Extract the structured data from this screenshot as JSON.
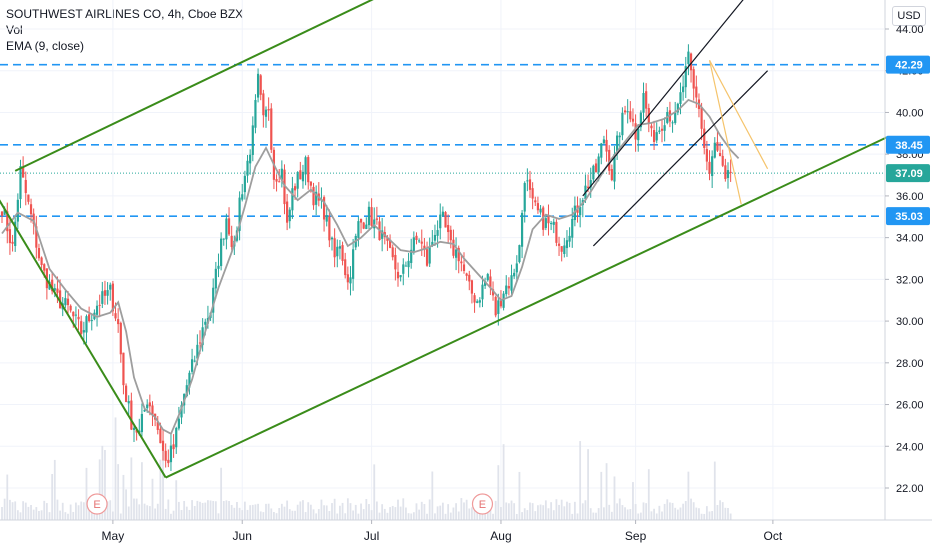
{
  "legend": {
    "symbol_line": "SOUTHWEST AIRLINES CO, 4h, Cboe BZX",
    "vol_label": "Vol",
    "ema_label": "EMA (9, close)"
  },
  "currency_button": "USD",
  "colors": {
    "up": "#26a69a",
    "down": "#ef5350",
    "ema": "#9e9e9e",
    "trend": "#3a8c1a",
    "level": "#2196f3",
    "price_line": "#26a69a",
    "volume": "#e0e3eb",
    "channel": "#131722",
    "fan": "#f5c46c"
  },
  "chart_data": {
    "type": "candlestick",
    "title": "SOUTHWEST AIRLINES CO, 4h, Cboe BZX",
    "ylim": [
      20.5,
      45
    ],
    "y_ticks": [
      "22.00",
      "24.00",
      "26.00",
      "28.00",
      "30.00",
      "32.00",
      "34.00",
      "36.00",
      "38.00",
      "40.00",
      "42.00",
      "44.00"
    ],
    "x_ticks": [
      "May",
      "Jun",
      "Jul",
      "Aug",
      "Sep",
      "Oct"
    ],
    "x_tick_index": [
      42,
      91,
      140,
      189,
      240,
      292
    ],
    "price_labels": [
      {
        "value": 42.29,
        "label": "42.29",
        "kind": "level"
      },
      {
        "value": 38.45,
        "label": "38.45",
        "kind": "level"
      },
      {
        "value": 37.09,
        "label": "37.09",
        "kind": "last"
      },
      {
        "value": 35.03,
        "label": "35.03",
        "kind": "level"
      }
    ],
    "horizontal_levels": [
      42.29,
      38.45,
      35.03
    ],
    "last_price": 37.09,
    "trend_lines": [
      {
        "from": [
          -2,
          36.0
        ],
        "to": [
          62,
          22.5
        ],
        "style": "upper-start"
      },
      {
        "from": [
          5,
          37.2
        ],
        "to": [
          150,
          46.0
        ]
      },
      {
        "from": [
          62,
          22.5
        ],
        "to": [
          335,
          38.8
        ]
      }
    ],
    "channel_lines": [
      {
        "from": [
          220,
          36.0
        ],
        "to": [
          282,
          45.6
        ]
      },
      {
        "from": [
          224,
          33.6
        ],
        "to": [
          290,
          42.0
        ]
      }
    ],
    "fan_lines": [
      {
        "from": [
          268,
          42.5
        ],
        "to": [
          280,
          35.6
        ]
      },
      {
        "from": [
          268,
          42.5
        ],
        "to": [
          290,
          37.3
        ]
      }
    ],
    "event_markers": [
      {
        "index": 36,
        "label": "E"
      },
      {
        "index": 182,
        "label": "E"
      }
    ],
    "anchors": [
      [
        0,
        35.5
      ],
      [
        4,
        33.5
      ],
      [
        7,
        37.2
      ],
      [
        11,
        35.0
      ],
      [
        15,
        32.5
      ],
      [
        20,
        31.2
      ],
      [
        25,
        30.6
      ],
      [
        30,
        29.5
      ],
      [
        36,
        30.8
      ],
      [
        41,
        31.4
      ],
      [
        44,
        29.8
      ],
      [
        46,
        27.0
      ],
      [
        49,
        25.2
      ],
      [
        52,
        24.6
      ],
      [
        55,
        26.3
      ],
      [
        58,
        25.4
      ],
      [
        62,
        23.2
      ],
      [
        65,
        23.9
      ],
      [
        69,
        26.5
      ],
      [
        73,
        28.2
      ],
      [
        77,
        30.1
      ],
      [
        79,
        30.5
      ],
      [
        82,
        33.0
      ],
      [
        85,
        35.0
      ],
      [
        88,
        33.4
      ],
      [
        90,
        35.8
      ],
      [
        93,
        37.6
      ],
      [
        95,
        39.0
      ],
      [
        97,
        41.5
      ],
      [
        99,
        39.5
      ],
      [
        101,
        40.3
      ],
      [
        103,
        37.0
      ],
      [
        106,
        37.2
      ],
      [
        108,
        34.5
      ],
      [
        110,
        36.2
      ],
      [
        112,
        36.8
      ],
      [
        115,
        37.5
      ],
      [
        118,
        36.0
      ],
      [
        122,
        35.3
      ],
      [
        126,
        33.0
      ],
      [
        128,
        33.8
      ],
      [
        131,
        31.8
      ],
      [
        135,
        34.6
      ],
      [
        139,
        35.1
      ],
      [
        143,
        34.3
      ],
      [
        147,
        33.1
      ],
      [
        151,
        32.0
      ],
      [
        155,
        33.5
      ],
      [
        158,
        34.0
      ],
      [
        161,
        32.8
      ],
      [
        164,
        34.4
      ],
      [
        167,
        34.8
      ],
      [
        170,
        33.5
      ],
      [
        173,
        33.2
      ],
      [
        177,
        31.5
      ],
      [
        180,
        31.0
      ],
      [
        184,
        32.2
      ],
      [
        187,
        30.4
      ],
      [
        190,
        31.5
      ],
      [
        193,
        32.0
      ],
      [
        196,
        33.5
      ],
      [
        198,
        37.0
      ],
      [
        201,
        35.5
      ],
      [
        205,
        34.8
      ],
      [
        209,
        34.4
      ],
      [
        212,
        33.7
      ],
      [
        216,
        34.8
      ],
      [
        219,
        35.8
      ],
      [
        222,
        36.6
      ],
      [
        225,
        37.2
      ],
      [
        228,
        38.8
      ],
      [
        231,
        37.0
      ],
      [
        234,
        39.2
      ],
      [
        237,
        40.4
      ],
      [
        240,
        39.0
      ],
      [
        243,
        40.8
      ],
      [
        246,
        38.8
      ],
      [
        249,
        39.3
      ],
      [
        252,
        40.1
      ],
      [
        255,
        39.6
      ],
      [
        258,
        41.3
      ],
      [
        260,
        42.5
      ],
      [
        262,
        41.0
      ],
      [
        264,
        40.3
      ],
      [
        266,
        38.3
      ],
      [
        268,
        37.0
      ],
      [
        270,
        38.4
      ],
      [
        272,
        37.7
      ],
      [
        274,
        36.5
      ],
      [
        276,
        37.1
      ]
    ],
    "ema_series": [
      [
        0,
        34.2
      ],
      [
        6,
        35.2
      ],
      [
        12,
        34.8
      ],
      [
        18,
        32.5
      ],
      [
        24,
        31.5
      ],
      [
        30,
        30.6
      ],
      [
        36,
        30.2
      ],
      [
        41,
        30.4
      ],
      [
        44,
        30.9
      ],
      [
        47,
        29.5
      ],
      [
        50,
        27.3
      ],
      [
        54,
        25.8
      ],
      [
        58,
        25.4
      ],
      [
        61,
        24.8
      ],
      [
        64,
        24.6
      ],
      [
        67,
        25.5
      ],
      [
        72,
        27.2
      ],
      [
        77,
        29.5
      ],
      [
        82,
        31.6
      ],
      [
        87,
        33.3
      ],
      [
        92,
        35.5
      ],
      [
        96,
        37.4
      ],
      [
        100,
        38.3
      ],
      [
        103,
        37.5
      ],
      [
        107,
        36.5
      ],
      [
        112,
        35.8
      ],
      [
        117,
        36.3
      ],
      [
        122,
        35.7
      ],
      [
        127,
        34.6
      ],
      [
        131,
        33.6
      ],
      [
        136,
        34.0
      ],
      [
        141,
        34.6
      ],
      [
        146,
        34.0
      ],
      [
        151,
        33.4
      ],
      [
        156,
        33.3
      ],
      [
        161,
        33.5
      ],
      [
        166,
        33.8
      ],
      [
        171,
        33.7
      ],
      [
        175,
        33.0
      ],
      [
        180,
        32.3
      ],
      [
        185,
        31.6
      ],
      [
        189,
        31.0
      ],
      [
        193,
        31.2
      ],
      [
        197,
        32.6
      ],
      [
        201,
        34.4
      ],
      [
        206,
        35.1
      ],
      [
        211,
        34.9
      ],
      [
        216,
        35.1
      ],
      [
        221,
        35.8
      ],
      [
        226,
        36.8
      ],
      [
        231,
        37.8
      ],
      [
        236,
        38.6
      ],
      [
        241,
        39.4
      ],
      [
        246,
        39.5
      ],
      [
        251,
        39.7
      ],
      [
        256,
        40.1
      ],
      [
        260,
        40.6
      ],
      [
        264,
        40.4
      ],
      [
        268,
        39.8
      ],
      [
        272,
        38.9
      ],
      [
        276,
        38.2
      ],
      [
        279,
        37.8
      ]
    ]
  }
}
